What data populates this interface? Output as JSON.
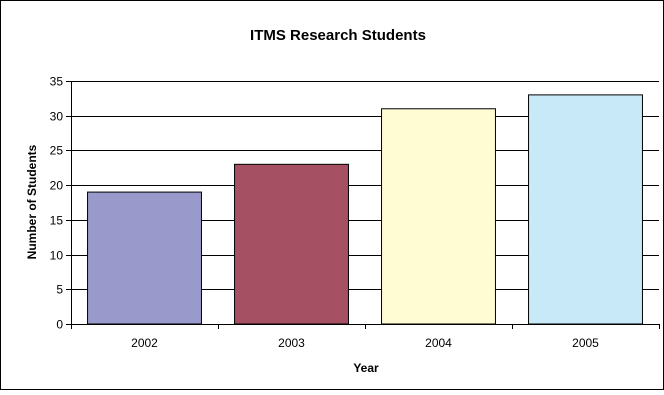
{
  "chart_data": {
    "type": "bar",
    "title": "ITMS Research Students",
    "xlabel": "Year",
    "ylabel": "Number of Students",
    "categories": [
      "2002",
      "2003",
      "2004",
      "2005"
    ],
    "values": [
      19,
      23,
      31,
      33
    ],
    "bar_colors": [
      "#9999cc",
      "#a65063",
      "#fffbd2",
      "#c8e9f7"
    ],
    "ylim": [
      0,
      35
    ],
    "yticks": [
      0,
      5,
      10,
      15,
      20,
      25,
      30,
      35
    ],
    "grid": true,
    "legend": "none"
  }
}
